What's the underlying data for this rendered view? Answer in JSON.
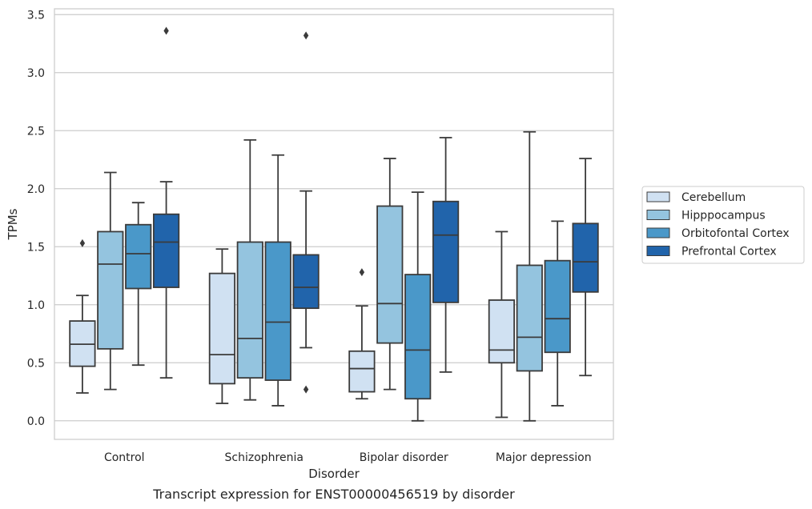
{
  "chart_data": {
    "type": "box",
    "caption": "Transcript expression for ENST00000456519 by disorder",
    "xlabel": "Disorder",
    "ylabel": "TPMs",
    "ylim": [
      -0.16,
      3.55
    ],
    "yticks": [
      "0.0",
      "0.5",
      "1.0",
      "1.5",
      "2.0",
      "2.5",
      "3.0",
      "3.5"
    ],
    "ytick_values": [
      0,
      0.5,
      1,
      1.5,
      2,
      2.5,
      3,
      3.5
    ],
    "grid": "horizontal",
    "legend_position": "right",
    "categories": [
      "Control",
      "Schizophrenia",
      "Bipolar disorder",
      "Major depression"
    ],
    "series": [
      {
        "name": "Cerebellum",
        "color": "#d0e1f2",
        "boxes": [
          {
            "whislo": 0.24,
            "q1": 0.47,
            "med": 0.66,
            "q3": 0.86,
            "whishi": 1.08,
            "fliers": [
              1.53
            ]
          },
          {
            "whislo": 0.15,
            "q1": 0.32,
            "med": 0.57,
            "q3": 1.27,
            "whishi": 1.48,
            "fliers": []
          },
          {
            "whislo": 0.19,
            "q1": 0.25,
            "med": 0.45,
            "q3": 0.6,
            "whishi": 0.99,
            "fliers": [
              1.28
            ]
          },
          {
            "whislo": 0.03,
            "q1": 0.5,
            "med": 0.61,
            "q3": 1.04,
            "whishi": 1.63,
            "fliers": []
          }
        ]
      },
      {
        "name": "Hipppocampus",
        "color": "#94c4df",
        "boxes": [
          {
            "whislo": 0.27,
            "q1": 0.62,
            "med": 1.35,
            "q3": 1.63,
            "whishi": 2.14,
            "fliers": []
          },
          {
            "whislo": 0.18,
            "q1": 0.37,
            "med": 0.71,
            "q3": 1.54,
            "whishi": 2.42,
            "fliers": []
          },
          {
            "whislo": 0.27,
            "q1": 0.67,
            "med": 1.01,
            "q3": 1.85,
            "whishi": 2.26,
            "fliers": []
          },
          {
            "whislo": 0.0,
            "q1": 0.43,
            "med": 0.72,
            "q3": 1.34,
            "whishi": 2.49,
            "fliers": []
          }
        ]
      },
      {
        "name": "Orbitofontal Cortex",
        "color": "#4a98c9",
        "boxes": [
          {
            "whislo": 0.48,
            "q1": 1.14,
            "med": 1.44,
            "q3": 1.69,
            "whishi": 1.88,
            "fliers": []
          },
          {
            "whislo": 0.13,
            "q1": 0.35,
            "med": 0.85,
            "q3": 1.54,
            "whishi": 2.29,
            "fliers": []
          },
          {
            "whislo": 0.0,
            "q1": 0.19,
            "med": 0.61,
            "q3": 1.26,
            "whishi": 1.97,
            "fliers": []
          },
          {
            "whislo": 0.13,
            "q1": 0.59,
            "med": 0.88,
            "q3": 1.38,
            "whishi": 1.72,
            "fliers": []
          }
        ]
      },
      {
        "name": "Prefrontal Cortex",
        "color": "#2164ab",
        "boxes": [
          {
            "whislo": 0.37,
            "q1": 1.15,
            "med": 1.54,
            "q3": 1.78,
            "whishi": 2.06,
            "fliers": [
              3.36
            ]
          },
          {
            "whislo": 0.63,
            "q1": 0.97,
            "med": 1.15,
            "q3": 1.43,
            "whishi": 1.98,
            "fliers": [
              0.27,
              3.32
            ]
          },
          {
            "whislo": 0.42,
            "q1": 1.02,
            "med": 1.6,
            "q3": 1.89,
            "whishi": 2.44,
            "fliers": []
          },
          {
            "whislo": 0.39,
            "q1": 1.11,
            "med": 1.37,
            "q3": 1.7,
            "whishi": 2.26,
            "fliers": []
          }
        ]
      }
    ]
  }
}
